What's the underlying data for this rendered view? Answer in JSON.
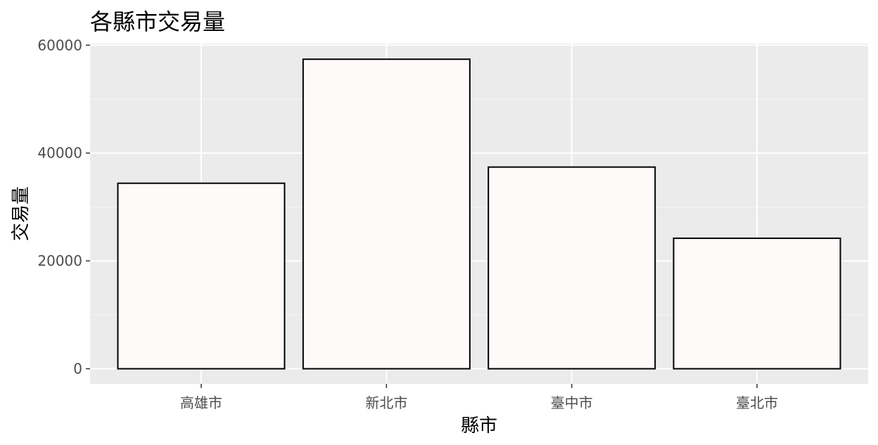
{
  "chart_data": {
    "type": "bar",
    "title": "各縣市交易量",
    "xlabel": "縣市",
    "ylabel": "交易量",
    "categories": [
      "高雄市",
      "新北市",
      "臺中市",
      "臺北市"
    ],
    "values": [
      34400,
      57400,
      37400,
      24200
    ],
    "ylim": [
      -2800,
      60300
    ],
    "yticks": [
      0,
      20000,
      40000,
      60000
    ],
    "ytick_labels": [
      "0",
      "20000",
      "40000",
      "60000"
    ],
    "grid": true,
    "legend": "none",
    "colors": {
      "panel_background": "#ebebeb",
      "grid_major": "#ffffff",
      "grid_minor": "#f5f5f5",
      "bar_fill": "#fffafa",
      "bar_stroke": "#000000",
      "tick_text": "#4d4d4d",
      "tick_mark": "#333333"
    }
  }
}
